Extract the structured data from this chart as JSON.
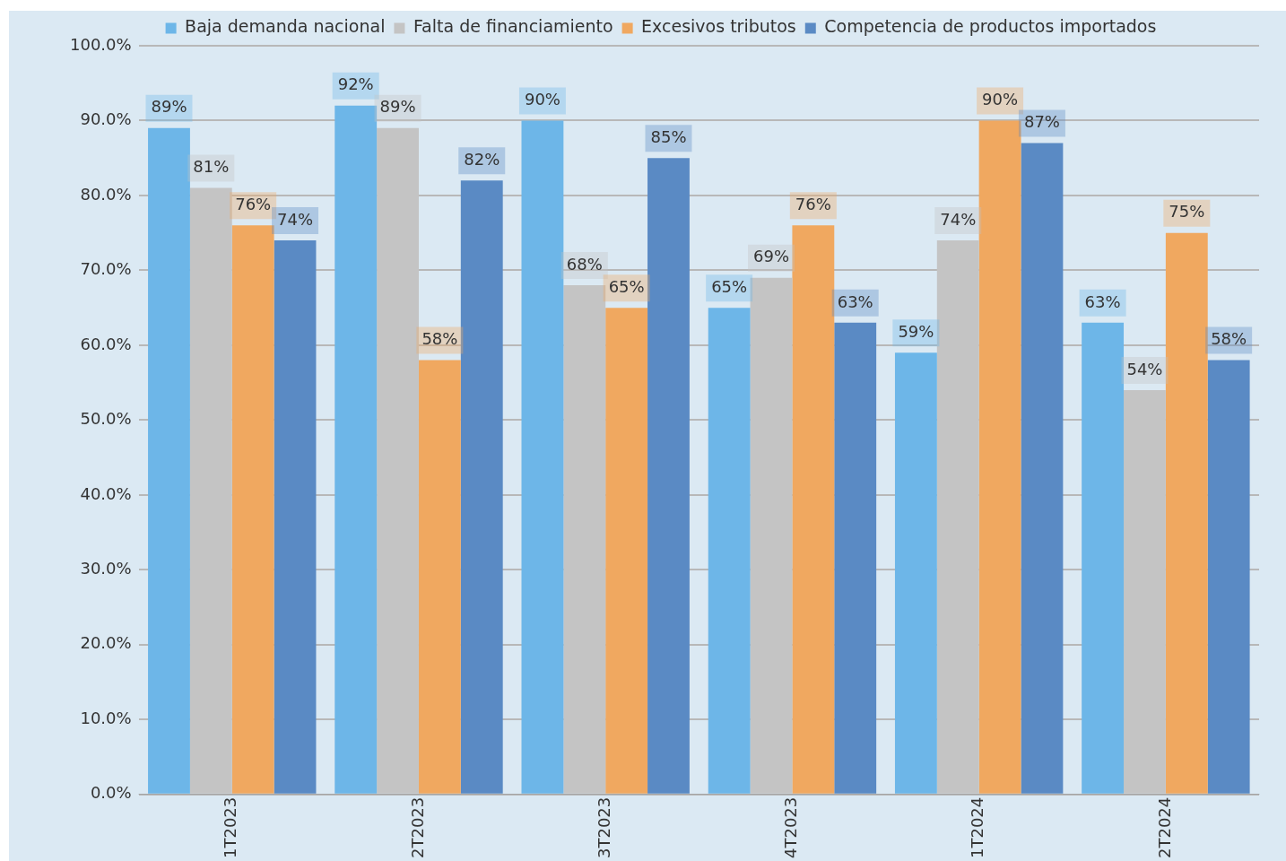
{
  "chart_data": {
    "type": "bar",
    "categories": [
      "1T2023",
      "2T2023",
      "3T2023",
      "4T2023",
      "1T2024",
      "2T2024"
    ],
    "series": [
      {
        "name": "Baja demanda nacional",
        "color": "#6db6e8",
        "values": [
          89,
          92,
          90,
          65,
          59,
          63
        ],
        "value_labels": [
          "89%",
          "92%",
          "90%",
          "65%",
          "59%",
          "63%"
        ]
      },
      {
        "name": "Falta de financiamiento",
        "color": "#c4c4c4",
        "values": [
          81,
          89,
          68,
          69,
          74,
          54
        ],
        "value_labels": [
          "81%",
          "89%",
          "68%",
          "69%",
          "74%",
          "54%"
        ]
      },
      {
        "name": "Excesivos tributos",
        "color": "#f0a860",
        "values": [
          76,
          58,
          65,
          76,
          90,
          75
        ],
        "value_labels": [
          "76%",
          "58%",
          "65%",
          "76%",
          "90%",
          "75%"
        ]
      },
      {
        "name": "Competencia de productos importados",
        "color": "#5a8ac4",
        "values": [
          74,
          82,
          85,
          63,
          87,
          58
        ],
        "value_labels": [
          "74%",
          "82%",
          "85%",
          "63%",
          "87%",
          "58%"
        ]
      }
    ],
    "ylim": [
      0,
      100
    ],
    "yticks": [
      {
        "value": 0,
        "label": "0.0%"
      },
      {
        "value": 10,
        "label": "10.0%"
      },
      {
        "value": 20,
        "label": "20.0%"
      },
      {
        "value": 30,
        "label": "30.0%"
      },
      {
        "value": 40,
        "label": "40.0%"
      },
      {
        "value": 50,
        "label": "50.0%"
      },
      {
        "value": 60,
        "label": "60.0%"
      },
      {
        "value": 70,
        "label": "70.0%"
      },
      {
        "value": 80,
        "label": "80.0%"
      },
      {
        "value": 90,
        "label": "90.0%"
      },
      {
        "value": 100,
        "label": "100.0%"
      }
    ],
    "grid": "y",
    "legend": "top"
  }
}
